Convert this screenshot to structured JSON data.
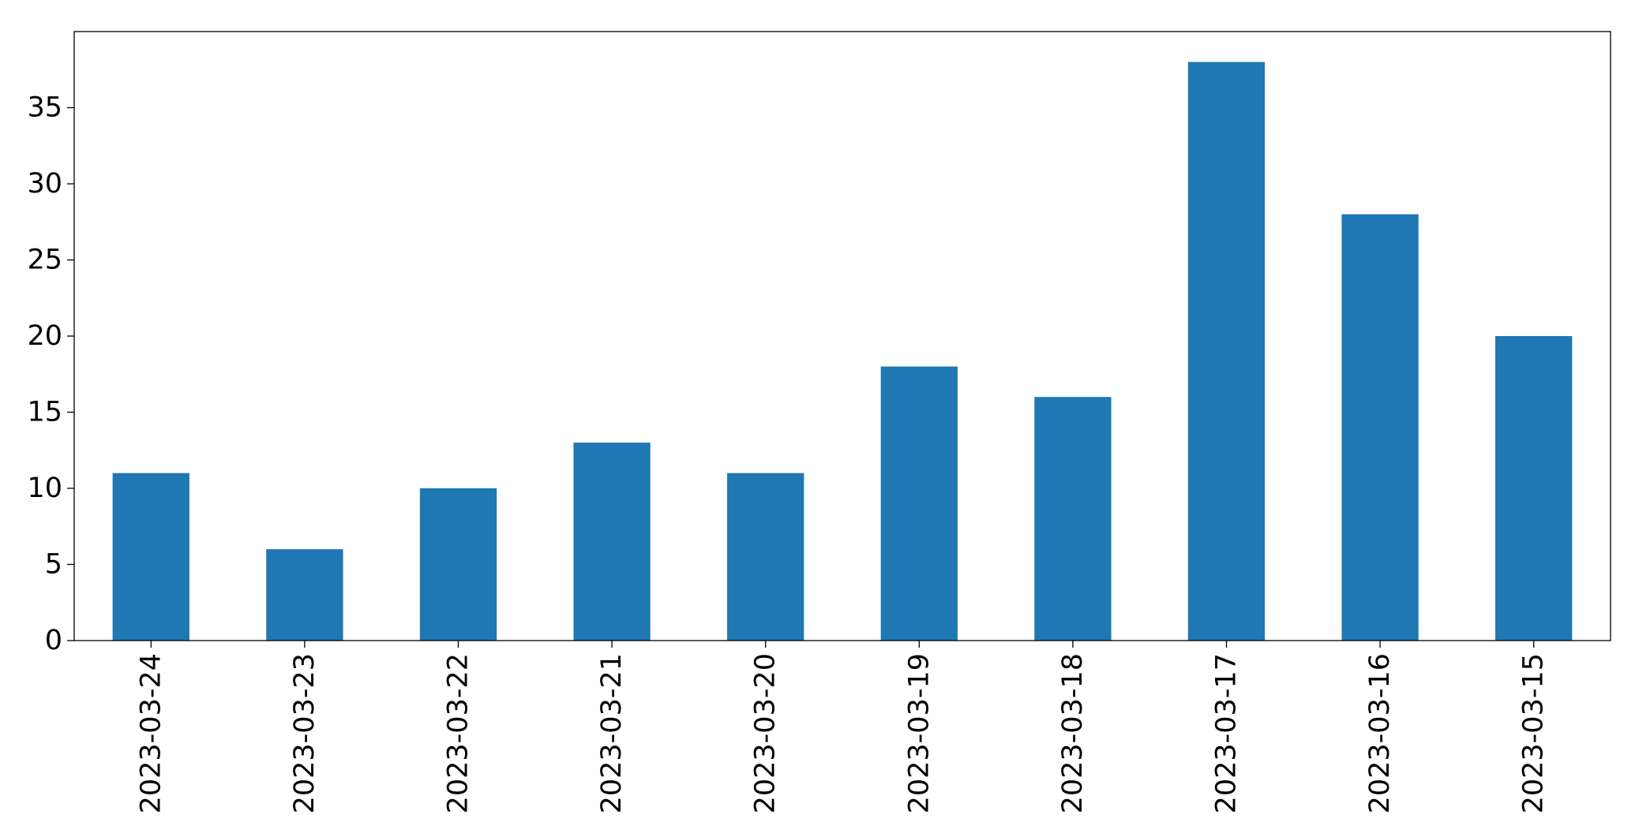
{
  "chart_data": {
    "type": "bar",
    "title": "",
    "xlabel": "",
    "ylabel": "",
    "categories": [
      "2023-03-24",
      "2023-03-23",
      "2023-03-22",
      "2023-03-21",
      "2023-03-20",
      "2023-03-19",
      "2023-03-18",
      "2023-03-17",
      "2023-03-16",
      "2023-03-15"
    ],
    "values": [
      11,
      6,
      10,
      13,
      11,
      18,
      16,
      38,
      28,
      20
    ],
    "ylim": [
      0,
      40
    ],
    "yticks": [
      0,
      5,
      10,
      15,
      20,
      25,
      30,
      35
    ],
    "bar_color": "#1f77b4",
    "grid": false,
    "legend": "none"
  }
}
